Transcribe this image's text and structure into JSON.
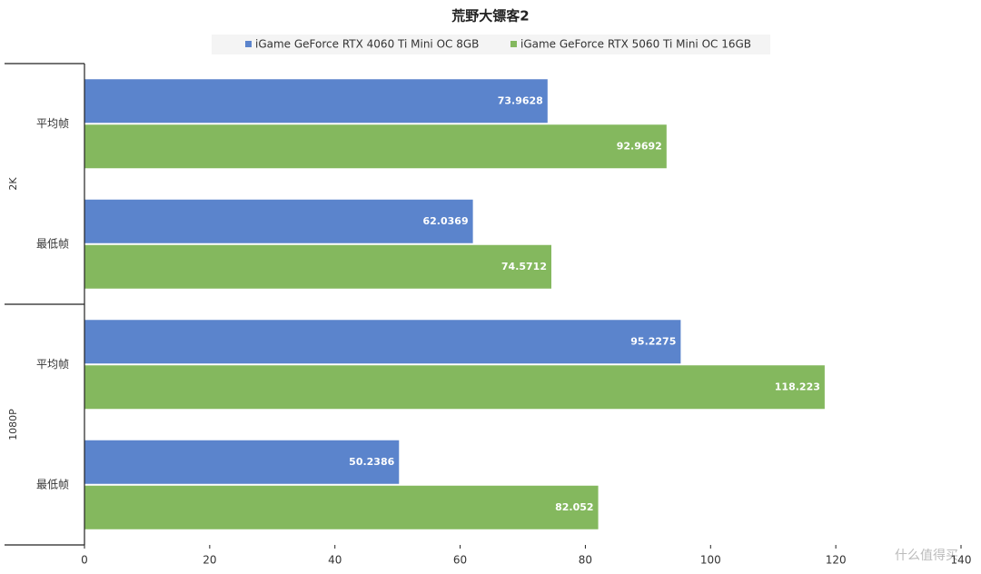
{
  "chart_data": {
    "type": "bar",
    "orientation": "horizontal",
    "title": "荒野大镖客2",
    "groups": [
      {
        "name": "2K",
        "categories": [
          "平均帧",
          "最低帧"
        ]
      },
      {
        "name": "1080P",
        "categories": [
          "平均帧",
          "最低帧"
        ]
      }
    ],
    "series": [
      {
        "name": "iGame GeForce RTX 4060 Ti Mini OC 8GB",
        "color": "#5b84cc",
        "values": [
          73.9628,
          62.0369,
          95.2275,
          50.2386
        ]
      },
      {
        "name": "iGame GeForce RTX 5060 Ti Mini OC 16GB",
        "color": "#84b85e",
        "values": [
          92.9692,
          74.5712,
          118.223,
          82.052
        ]
      }
    ],
    "xlim": [
      0,
      140
    ],
    "xticks": [
      0,
      20,
      40,
      60,
      80,
      100,
      120,
      140
    ],
    "grid": false,
    "legend": "top",
    "watermark": "什么值得买"
  }
}
